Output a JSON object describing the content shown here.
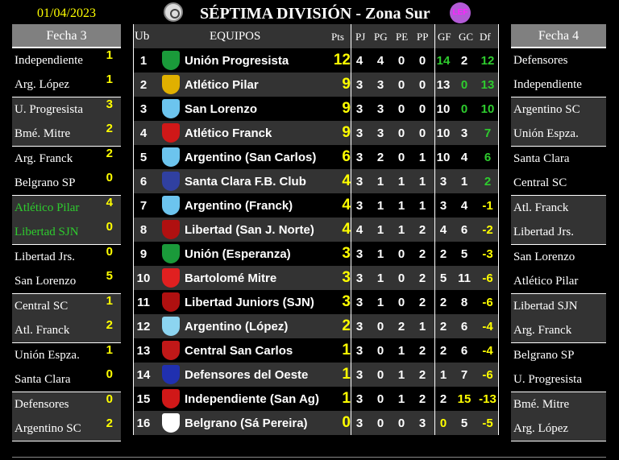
{
  "header": {
    "date": "01/04/2023",
    "title": "SÉPTIMA DIVISIÓN - Zona Sur",
    "league_logo_text": "LEF"
  },
  "left": {
    "title": "Fecha 3",
    "pairs": [
      [
        {
          "team": "Independiente",
          "score": "1"
        },
        {
          "team": "Arg. López",
          "score": "1"
        }
      ],
      [
        {
          "team": "U. Progresista",
          "score": "3"
        },
        {
          "team": "Bmé. Mitre",
          "score": "2"
        }
      ],
      [
        {
          "team": "Arg. Franck",
          "score": "2"
        },
        {
          "team": "Belgrano SP",
          "score": "0"
        }
      ],
      [
        {
          "team": "Atlético Pilar",
          "score": "4",
          "highlight": true
        },
        {
          "team": "Libertad SJN",
          "score": "0",
          "highlight": true
        }
      ],
      [
        {
          "team": "Libertad Jrs.",
          "score": "0"
        },
        {
          "team": "San Lorenzo",
          "score": "5"
        }
      ],
      [
        {
          "team": "Central SC",
          "score": "1"
        },
        {
          "team": "Atl. Franck",
          "score": "2"
        }
      ],
      [
        {
          "team": "Unión Espza.",
          "score": "1"
        },
        {
          "team": "Santa Clara",
          "score": "0"
        }
      ],
      [
        {
          "team": "Defensores",
          "score": "0"
        },
        {
          "team": "Argentino SC",
          "score": "2"
        }
      ]
    ]
  },
  "right": {
    "title": "Fecha 4",
    "pairs": [
      [
        "Defensores",
        "Independiente"
      ],
      [
        "Argentino SC",
        "Unión Espza."
      ],
      [
        "Santa Clara",
        "Central SC"
      ],
      [
        "Atl. Franck",
        "Libertad Jrs."
      ],
      [
        "San Lorenzo",
        "Atlético Pilar"
      ],
      [
        "Libertad SJN",
        "Arg. Franck"
      ],
      [
        "Belgrano SP",
        "U. Progresista"
      ],
      [
        "Bmé. Mitre",
        "Arg. López"
      ]
    ]
  },
  "table": {
    "columns": {
      "ub": "Ub",
      "equipos": "EQUIPOS",
      "pts": "Pts",
      "pj": "PJ",
      "pg": "PG",
      "pe": "PE",
      "pp": "PP",
      "gf": "GF",
      "gc": "GC",
      "df": "Df"
    },
    "colors": {
      "positive": "#2ecc2e",
      "negative": "#ffff00",
      "points": "#ffff00"
    },
    "rows": [
      {
        "pos": "1",
        "team": "Unión Progresista",
        "pts": "12",
        "pj": "4",
        "pg": "4",
        "pe": "0",
        "pp": "0",
        "gf": "14",
        "gc": "2",
        "df": "12",
        "crest": "#1a9a3a",
        "gf_c": "gr"
      },
      {
        "pos": "2",
        "team": "Atlético Pilar",
        "pts": "9",
        "pj": "3",
        "pg": "3",
        "pe": "0",
        "pp": "0",
        "gf": "13",
        "gc": "0",
        "df": "13",
        "crest": "#e0b000",
        "gc_c": "gr"
      },
      {
        "pos": "3",
        "team": "San Lorenzo",
        "pts": "9",
        "pj": "3",
        "pg": "3",
        "pe": "0",
        "pp": "0",
        "gf": "10",
        "gc": "0",
        "df": "10",
        "crest": "#6cc4ee",
        "gc_c": "gr"
      },
      {
        "pos": "4",
        "team": "Atlético Franck",
        "pts": "9",
        "pj": "3",
        "pg": "3",
        "pe": "0",
        "pp": "0",
        "gf": "10",
        "gc": "3",
        "df": "7",
        "crest": "#d01818"
      },
      {
        "pos": "5",
        "team": "Argentino (San Carlos)",
        "pts": "6",
        "pj": "3",
        "pg": "2",
        "pe": "0",
        "pp": "1",
        "gf": "10",
        "gc": "4",
        "df": "6",
        "crest": "#6cc4ee"
      },
      {
        "pos": "6",
        "team": "Santa Clara F.B. Club",
        "pts": "4",
        "pj": "3",
        "pg": "1",
        "pe": "1",
        "pp": "1",
        "gf": "3",
        "gc": "1",
        "df": "2",
        "crest": "#3040a0"
      },
      {
        "pos": "7",
        "team": "Argentino (Franck)",
        "pts": "4",
        "pj": "3",
        "pg": "1",
        "pe": "1",
        "pp": "1",
        "gf": "3",
        "gc": "4",
        "df": "-1",
        "crest": "#6cc4ee"
      },
      {
        "pos": "8",
        "team": "Libertad (San J. Norte)",
        "pts": "4",
        "pj": "4",
        "pg": "1",
        "pe": "1",
        "pp": "2",
        "gf": "4",
        "gc": "6",
        "df": "-2",
        "crest": "#b01010"
      },
      {
        "pos": "9",
        "team": "Unión (Esperanza)",
        "pts": "3",
        "pj": "3",
        "pg": "1",
        "pe": "0",
        "pp": "2",
        "gf": "2",
        "gc": "5",
        "df": "-3",
        "crest": "#1a9a3a"
      },
      {
        "pos": "10",
        "team": "Bartolomé Mitre",
        "pts": "3",
        "pj": "3",
        "pg": "1",
        "pe": "0",
        "pp": "2",
        "gf": "5",
        "gc": "11",
        "df": "-6",
        "crest": "#e02020"
      },
      {
        "pos": "11",
        "team": "Libertad Juniors (SJN)",
        "pts": "3",
        "pj": "3",
        "pg": "1",
        "pe": "0",
        "pp": "2",
        "gf": "2",
        "gc": "8",
        "df": "-6",
        "crest": "#b01010"
      },
      {
        "pos": "12",
        "team": "Argentino (López)",
        "pts": "2",
        "pj": "3",
        "pg": "0",
        "pe": "2",
        "pp": "1",
        "gf": "2",
        "gc": "6",
        "df": "-4",
        "crest": "#8cd4f0"
      },
      {
        "pos": "13",
        "team": "Central San Carlos",
        "pts": "1",
        "pj": "3",
        "pg": "0",
        "pe": "1",
        "pp": "2",
        "gf": "2",
        "gc": "6",
        "df": "-4",
        "crest": "#c01818"
      },
      {
        "pos": "14",
        "team": "Defensores del Oeste",
        "pts": "1",
        "pj": "3",
        "pg": "0",
        "pe": "1",
        "pp": "2",
        "gf": "1",
        "gc": "7",
        "df": "-6",
        "crest": "#2030b0"
      },
      {
        "pos": "15",
        "team": "Independiente (San Ag)",
        "pts": "1",
        "pj": "3",
        "pg": "0",
        "pe": "1",
        "pp": "2",
        "gf": "2",
        "gc": "15",
        "df": "-13",
        "crest": "#d01818",
        "gc_c": "y"
      },
      {
        "pos": "16",
        "team": "Belgrano (Sá Pereira)",
        "pts": "0",
        "pj": "3",
        "pg": "0",
        "pe": "0",
        "pp": "3",
        "gf": "0",
        "gc": "5",
        "df": "-5",
        "crest": "#ffffff",
        "gf_c": "y"
      }
    ]
  }
}
